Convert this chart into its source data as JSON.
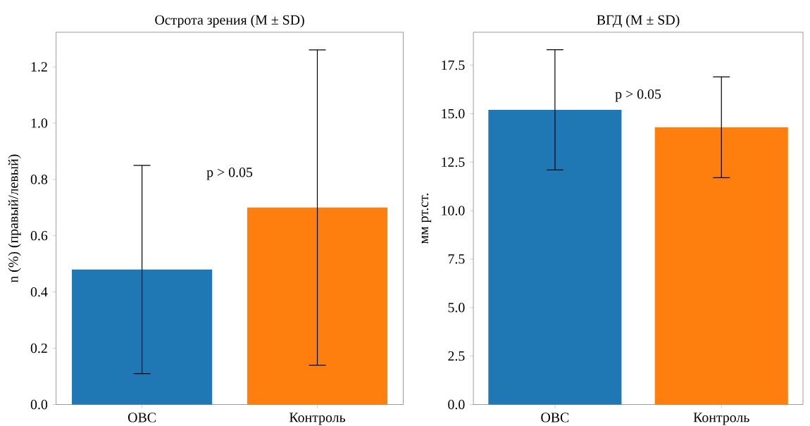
{
  "chart_data": [
    {
      "type": "bar",
      "title": "Острота зрения (M ± SD)",
      "ylabel": "n (%) (правый/левый)",
      "categories": [
        "ОВС",
        "Контроль"
      ],
      "values": [
        0.48,
        0.7
      ],
      "errors": [
        [
          0.11,
          0.85
        ],
        [
          0.14,
          1.26
        ]
      ],
      "colors": [
        "#1f77b4",
        "#ff7f0e"
      ],
      "ylim": [
        0,
        1.323
      ],
      "yticks": [
        {
          "value": 0,
          "label": "0.0"
        },
        {
          "value": 0.2,
          "label": "0.2"
        },
        {
          "value": 0.4,
          "label": "0.4"
        },
        {
          "value": 0.6,
          "label": "0.6"
        },
        {
          "value": 0.8,
          "label": "0.8"
        },
        {
          "value": 1.0,
          "label": "1.0"
        },
        {
          "value": 1.2,
          "label": "1.2"
        }
      ],
      "annotations": [
        "p > 0.05"
      ]
    },
    {
      "type": "bar",
      "title": "ВГД (M ± SD)",
      "ylabel": "мм рт.ст.",
      "categories": [
        "ОВС",
        "Контроль"
      ],
      "values": [
        15.2,
        14.3
      ],
      "errors": [
        [
          12.1,
          18.3
        ],
        [
          11.7,
          16.9
        ]
      ],
      "colors": [
        "#1f77b4",
        "#ff7f0e"
      ],
      "ylim": [
        0,
        19.2
      ],
      "yticks": [
        {
          "value": 0,
          "label": "0.0"
        },
        {
          "value": 2.5,
          "label": "2.5"
        },
        {
          "value": 5,
          "label": "5.0"
        },
        {
          "value": 7.5,
          "label": "7.5"
        },
        {
          "value": 10,
          "label": "10.0"
        },
        {
          "value": 12.5,
          "label": "12.5"
        },
        {
          "value": 15,
          "label": "15.0"
        },
        {
          "value": 17.5,
          "label": "17.5"
        }
      ],
      "annotations": [
        "p > 0.05"
      ]
    }
  ]
}
